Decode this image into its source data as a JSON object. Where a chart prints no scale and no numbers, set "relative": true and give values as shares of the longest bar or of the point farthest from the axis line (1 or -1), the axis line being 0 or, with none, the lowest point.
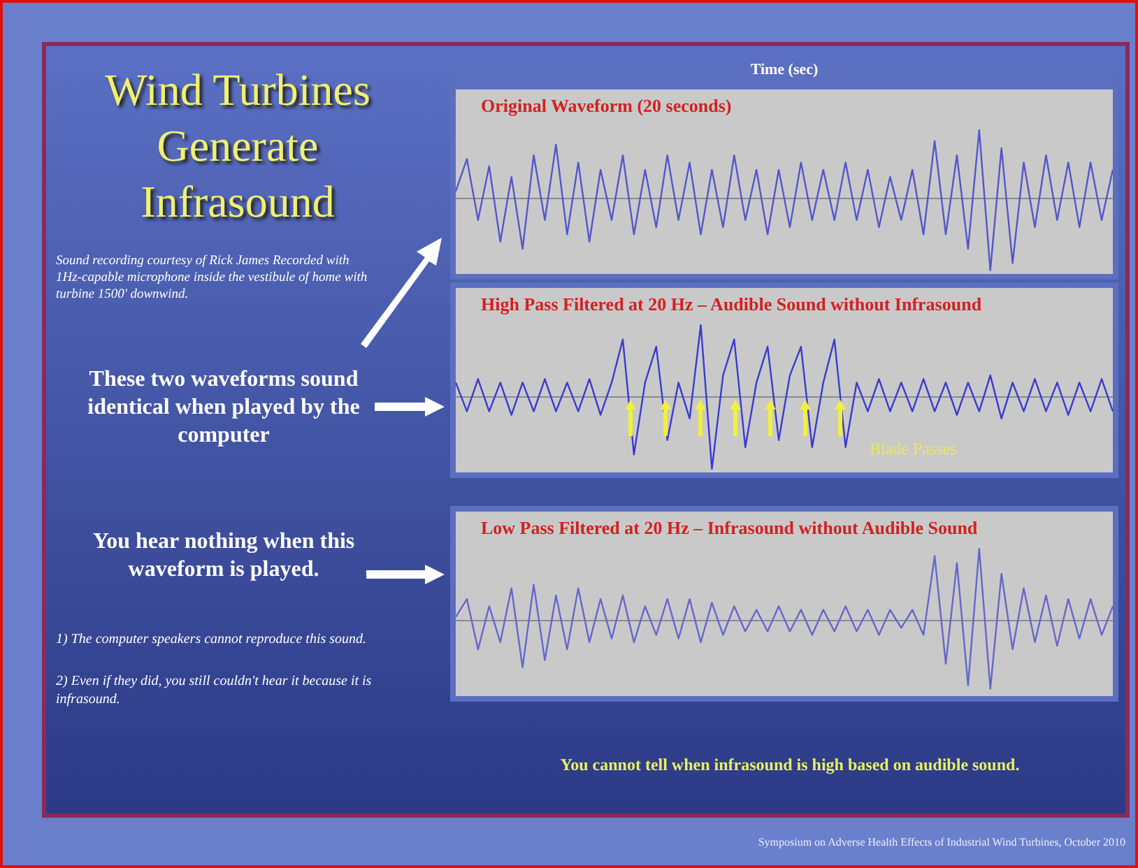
{
  "chart_data": [
    {
      "type": "other",
      "title": "Wind Turbines Generate Infrasound",
      "annotations": [
        "Sound recording courtesy of Rick James Recorded with 1Hz-capable microphone inside the vestibule of home with turbine 1500' downwind.",
        "These two waveforms sound identical when played by the computer",
        "You hear nothing when this waveform is played.",
        "1) The computer speakers cannot reproduce this sound.",
        "2) Even if they did, you still couldn't hear it because it is infrasound.",
        "You cannot tell when infrasound is high based on audible sound.",
        "Symposium on Adverse Health Effects of Industrial Wind Turbines, October 2010"
      ]
    },
    {
      "type": "line",
      "title": "Original Waveform (20 seconds)",
      "xlabel": "Time (sec)",
      "relative": true,
      "categories": [
        null,
        null,
        null,
        null,
        null,
        null,
        null,
        null,
        null,
        null,
        null,
        null,
        null,
        null,
        null,
        null,
        null,
        null,
        null,
        null,
        null,
        null,
        null,
        null,
        null,
        null,
        null,
        null,
        null,
        null,
        null,
        null,
        null,
        null,
        null,
        null,
        null,
        null,
        null,
        null,
        null,
        null,
        null,
        null,
        null,
        null,
        null,
        null,
        null,
        null,
        null,
        null,
        null,
        null,
        null,
        null,
        null,
        null,
        null,
        null
      ],
      "series": [
        {
          "color": "#5555cc",
          "values": [
            0.1,
            0.55,
            -0.3,
            0.45,
            -0.6,
            0.3,
            -0.7,
            0.6,
            -0.3,
            0.75,
            -0.5,
            0.5,
            -0.6,
            0.4,
            -0.3,
            0.6,
            -0.5,
            0.4,
            -0.4,
            0.6,
            -0.3,
            0.5,
            -0.5,
            0.4,
            -0.4,
            0.6,
            -0.3,
            0.4,
            -0.5,
            0.4,
            -0.4,
            0.5,
            -0.3,
            0.4,
            -0.3,
            0.5,
            -0.3,
            0.4,
            -0.4,
            0.3,
            -0.3,
            0.4,
            -0.5,
            0.8,
            -0.5,
            0.6,
            -0.7,
            0.95,
            -1,
            0.7,
            -0.9,
            0.5,
            -0.4,
            0.6,
            -0.3,
            0.5,
            -0.4,
            0.5,
            -0.3,
            0.4
          ]
        }
      ]
    },
    {
      "type": "line",
      "title": "High Pass Filtered at 20 Hz – Audible Sound without Infrasound",
      "relative": true,
      "annotations": [
        "Blade Passes"
      ],
      "categories": [
        null,
        null,
        null,
        null,
        null,
        null,
        null,
        null,
        null,
        null,
        null,
        null,
        null,
        null,
        null,
        null,
        null,
        null,
        null,
        null,
        null,
        null,
        null,
        null,
        null,
        null,
        null,
        null,
        null,
        null,
        null,
        null,
        null,
        null,
        null,
        null,
        null,
        null,
        null,
        null,
        null,
        null,
        null,
        null,
        null,
        null,
        null,
        null,
        null,
        null,
        null,
        null,
        null,
        null,
        null,
        null,
        null,
        null,
        null,
        null
      ],
      "series": [
        {
          "color": "#3a3ad0",
          "values": [
            0.2,
            -0.2,
            0.25,
            -0.2,
            0.2,
            -0.25,
            0.2,
            -0.2,
            0.25,
            -0.2,
            0.2,
            -0.2,
            0.25,
            -0.25,
            0.2,
            0.8,
            -0.8,
            0.2,
            0.7,
            -0.6,
            0.2,
            -0.3,
            1,
            -1,
            0.3,
            0.8,
            -0.7,
            0.2,
            0.7,
            -0.6,
            0.3,
            0.7,
            -0.7,
            0.2,
            0.8,
            -0.7,
            0.2,
            -0.2,
            0.25,
            -0.2,
            0.2,
            -0.2,
            0.25,
            -0.2,
            0.2,
            -0.25,
            0.2,
            -0.2,
            0.3,
            -0.3,
            0.2,
            -0.2,
            0.25,
            -0.2,
            0.2,
            -0.25,
            0.2,
            -0.2,
            0.25,
            -0.2
          ]
        }
      ]
    },
    {
      "type": "line",
      "title": "Low Pass Filtered at 20 Hz – Infrasound without Audible Sound",
      "relative": true,
      "categories": [
        null,
        null,
        null,
        null,
        null,
        null,
        null,
        null,
        null,
        null,
        null,
        null,
        null,
        null,
        null,
        null,
        null,
        null,
        null,
        null,
        null,
        null,
        null,
        null,
        null,
        null,
        null,
        null,
        null,
        null,
        null,
        null,
        null,
        null,
        null,
        null,
        null,
        null,
        null,
        null,
        null,
        null,
        null,
        null,
        null,
        null,
        null,
        null,
        null,
        null,
        null,
        null,
        null,
        null,
        null,
        null,
        null,
        null,
        null,
        null
      ],
      "series": [
        {
          "color": "#6666cc",
          "values": [
            0.05,
            0.3,
            -0.4,
            0.2,
            -0.3,
            0.45,
            -0.65,
            0.5,
            -0.55,
            0.35,
            -0.4,
            0.45,
            -0.3,
            0.3,
            -0.25,
            0.35,
            -0.3,
            0.2,
            -0.2,
            0.3,
            -0.25,
            0.3,
            -0.3,
            0.25,
            -0.2,
            0.2,
            -0.15,
            0.15,
            -0.15,
            0.2,
            -0.15,
            0.15,
            -0.2,
            0.15,
            -0.15,
            0.2,
            -0.15,
            0.15,
            -0.2,
            0.15,
            -0.1,
            0.15,
            -0.2,
            0.9,
            -0.6,
            0.8,
            -0.9,
            1,
            -0.95,
            0.65,
            -0.4,
            0.45,
            -0.3,
            0.35,
            -0.35,
            0.3,
            -0.25,
            0.3,
            -0.2,
            0.2
          ]
        }
      ]
    }
  ]
}
